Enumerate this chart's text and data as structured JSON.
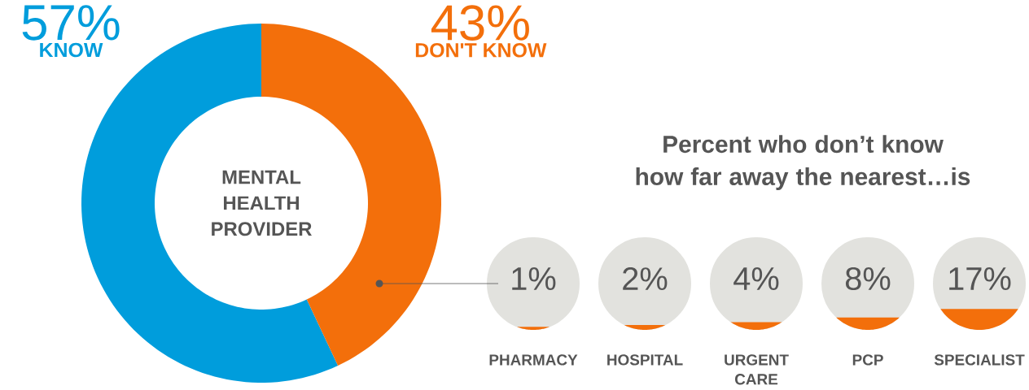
{
  "chart_data": [
    {
      "type": "donut",
      "categories": [
        "KNOW",
        "DON'T KNOW"
      ],
      "values": [
        57,
        43
      ],
      "colors": [
        "#009ddc",
        "#f36f0b"
      ],
      "value_labels": [
        "57%",
        "43%"
      ],
      "annotations": [
        "MENTAL HEALTH PROVIDER"
      ]
    },
    {
      "type": "other",
      "title": "Percent who don’t know how far away the nearest…is",
      "categories": [
        "PHARMACY",
        "HOSPITAL",
        "URGENT CARE",
        "PCP",
        "SPECIALIST"
      ],
      "values": [
        1,
        2,
        4,
        8,
        17
      ],
      "value_labels": [
        "1%",
        "2%",
        "4%",
        "8%",
        "17%"
      ],
      "color": "#f36f0b"
    }
  ]
}
